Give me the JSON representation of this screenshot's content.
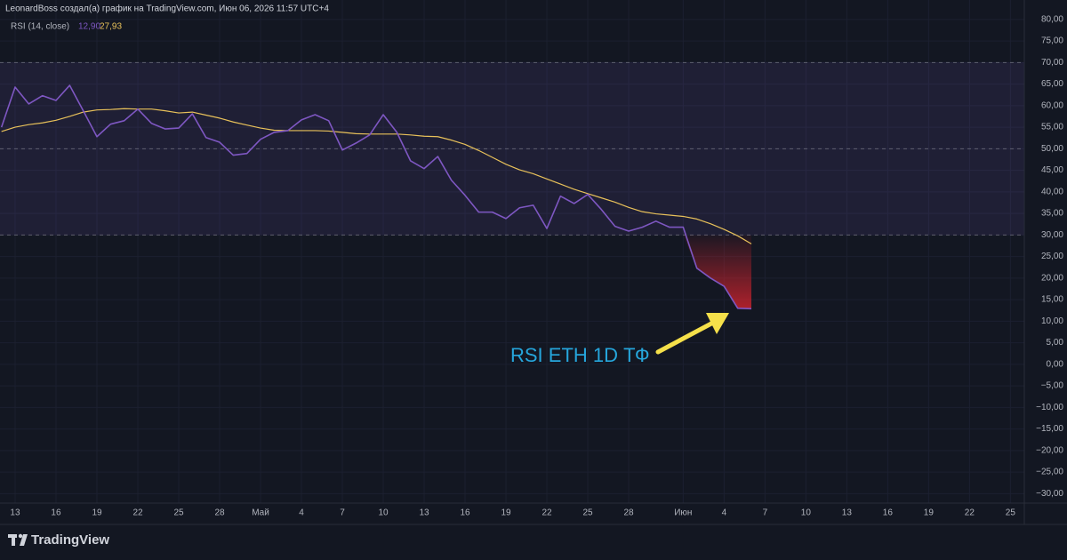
{
  "header": "LeonardBoss создал(а) график на TradingView.com, Июн 06, 2026 11:57 UTC+4",
  "brand": "TradingView",
  "chart_data": {
    "type": "line",
    "indicator": "RSI (14, close)",
    "annotation": "RSI ETH 1D ТФ",
    "x": [
      "2026-04-12",
      "2026-04-13",
      "2026-04-14",
      "2026-04-15",
      "2026-04-16",
      "2026-04-17",
      "2026-04-18",
      "2026-04-19",
      "2026-04-20",
      "2026-04-21",
      "2026-04-22",
      "2026-04-23",
      "2026-04-24",
      "2026-04-25",
      "2026-04-26",
      "2026-04-27",
      "2026-04-28",
      "2026-04-29",
      "2026-04-30",
      "2026-05-01",
      "2026-05-02",
      "2026-05-03",
      "2026-05-04",
      "2026-05-05",
      "2026-05-06",
      "2026-05-07",
      "2026-05-08",
      "2026-05-09",
      "2026-05-10",
      "2026-05-11",
      "2026-05-12",
      "2026-05-13",
      "2026-05-14",
      "2026-05-15",
      "2026-05-16",
      "2026-05-17",
      "2026-05-18",
      "2026-05-19",
      "2026-05-20",
      "2026-05-21",
      "2026-05-22",
      "2026-05-23",
      "2026-05-24",
      "2026-05-25",
      "2026-05-26",
      "2026-05-27",
      "2026-05-28",
      "2026-05-29",
      "2026-05-30",
      "2026-05-31",
      "2026-06-01",
      "2026-06-02",
      "2026-06-03",
      "2026-06-04",
      "2026-06-05",
      "2026-06-06"
    ],
    "series": [
      {
        "color": "#7e57c2",
        "legend_value": "12,90",
        "values": [
          55,
          64.3,
          60.4,
          62.3,
          61.2,
          64.7,
          58.8,
          52.8,
          55.7,
          56.5,
          59.2,
          55.9,
          54.6,
          54.8,
          58.1,
          52.6,
          51.5,
          48.5,
          48.9,
          52.2,
          53.8,
          54.2,
          56.7,
          57.9,
          56.5,
          49.7,
          51.3,
          53.2,
          57.9,
          53.8,
          47.2,
          45.4,
          48.2,
          42.7,
          39.2,
          35.3,
          35.3,
          33.8,
          36.3,
          36.9,
          31.5,
          39.0,
          37.3,
          39.4,
          35.9,
          32.0,
          30.9,
          31.8,
          33.2,
          31.8,
          31.8,
          22.3,
          20.0,
          18.1,
          13.0,
          12.9
        ]
      },
      {
        "color": "#e8c15a",
        "legend_value": "27,93",
        "values": [
          54.0,
          55.0,
          55.6,
          56.0,
          56.6,
          57.5,
          58.5,
          59.0,
          59.1,
          59.3,
          59.2,
          59.2,
          58.8,
          58.3,
          58.5,
          57.8,
          57.1,
          56.2,
          55.5,
          54.8,
          54.3,
          54.2,
          54.2,
          54.2,
          54.1,
          53.8,
          53.5,
          53.4,
          53.4,
          53.4,
          53.2,
          52.9,
          52.8,
          52.0,
          51.0,
          49.6,
          48.0,
          46.4,
          45.1,
          44.2,
          43.0,
          41.8,
          40.6,
          39.6,
          38.6,
          37.6,
          36.4,
          35.4,
          34.9,
          34.6,
          34.3,
          33.7,
          32.6,
          31.3,
          29.8,
          27.93
        ]
      }
    ],
    "bands": {
      "upper": 70,
      "middle": 50,
      "lower": 30,
      "fill": "#7e57c2",
      "oversold_fill": "#e0242e"
    },
    "xlim": [
      "2026-04-11",
      "2026-06-26"
    ],
    "xticks": [
      {
        "value": "2026-04-13",
        "label": "13"
      },
      {
        "value": "2026-04-16",
        "label": "16"
      },
      {
        "value": "2026-04-19",
        "label": "19"
      },
      {
        "value": "2026-04-22",
        "label": "22"
      },
      {
        "value": "2026-04-25",
        "label": "25"
      },
      {
        "value": "2026-04-28",
        "label": "28"
      },
      {
        "value": "2026-05-01",
        "label": "Май"
      },
      {
        "value": "2026-05-04",
        "label": "4"
      },
      {
        "value": "2026-05-07",
        "label": "7"
      },
      {
        "value": "2026-05-10",
        "label": "10"
      },
      {
        "value": "2026-05-13",
        "label": "13"
      },
      {
        "value": "2026-05-16",
        "label": "16"
      },
      {
        "value": "2026-05-19",
        "label": "19"
      },
      {
        "value": "2026-05-22",
        "label": "22"
      },
      {
        "value": "2026-05-25",
        "label": "25"
      },
      {
        "value": "2026-05-28",
        "label": "28"
      },
      {
        "value": "2026-06-01",
        "label": "Июн"
      },
      {
        "value": "2026-06-04",
        "label": "4"
      },
      {
        "value": "2026-06-07",
        "label": "7"
      },
      {
        "value": "2026-06-10",
        "label": "10"
      },
      {
        "value": "2026-06-13",
        "label": "13"
      },
      {
        "value": "2026-06-16",
        "label": "16"
      },
      {
        "value": "2026-06-19",
        "label": "19"
      },
      {
        "value": "2026-06-22",
        "label": "22"
      },
      {
        "value": "2026-06-25",
        "label": "25"
      }
    ],
    "ylim": [
      -32.2,
      84.5
    ],
    "yticks": [
      {
        "value": 80,
        "label": "80,00"
      },
      {
        "value": 75,
        "label": "75,00"
      },
      {
        "value": 70,
        "label": "70,00"
      },
      {
        "value": 65,
        "label": "65,00"
      },
      {
        "value": 60,
        "label": "60,00"
      },
      {
        "value": 55,
        "label": "55,00"
      },
      {
        "value": 50,
        "label": "50,00"
      },
      {
        "value": 45,
        "label": "45,00"
      },
      {
        "value": 40,
        "label": "40,00"
      },
      {
        "value": 35,
        "label": "35,00"
      },
      {
        "value": 30,
        "label": "30,00"
      },
      {
        "value": 25,
        "label": "25,00"
      },
      {
        "value": 20,
        "label": "20,00"
      },
      {
        "value": 15,
        "label": "15,00"
      },
      {
        "value": 10,
        "label": "10,00"
      },
      {
        "value": 5,
        "label": "5,00"
      },
      {
        "value": 0,
        "label": "0,00"
      },
      {
        "value": -5,
        "label": "−5,00"
      },
      {
        "value": -10,
        "label": "−10,00"
      },
      {
        "value": -15,
        "label": "−15,00"
      },
      {
        "value": -20,
        "label": "−20,00"
      },
      {
        "value": -25,
        "label": "−25,00"
      },
      {
        "value": -30,
        "label": "−30,00"
      }
    ],
    "grid": true
  }
}
